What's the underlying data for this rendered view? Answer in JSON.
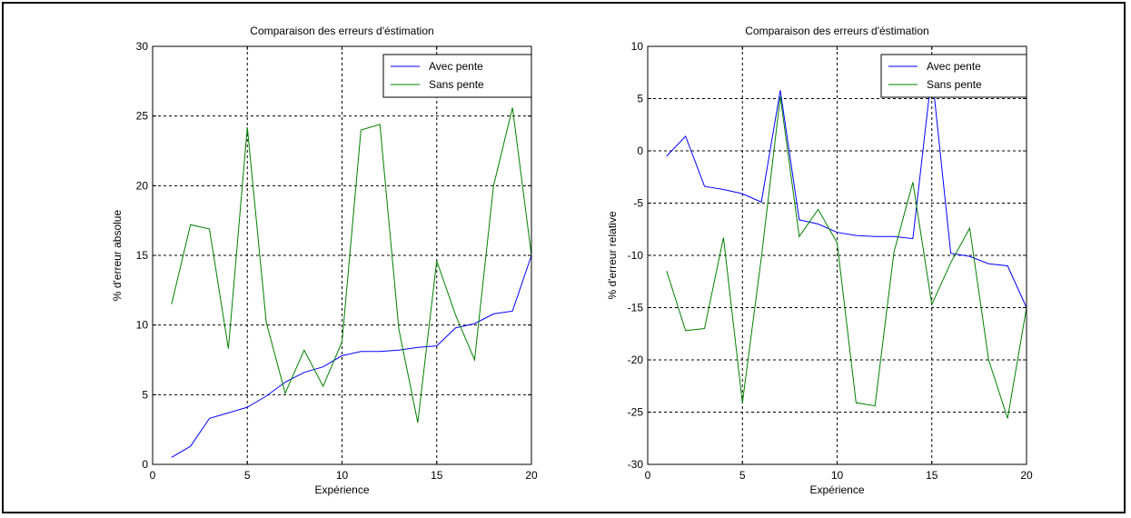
{
  "colors": {
    "series_blue": "#0000ff",
    "series_green": "#008000",
    "grid": "#000000",
    "background": "#ffffff"
  },
  "chart_data": [
    {
      "type": "line",
      "title": "Comparaison des erreurs d'éstimation",
      "xlabel": "Expérience",
      "ylabel": "% d'erreur absolue",
      "xlim": [
        0,
        20
      ],
      "ylim": [
        0,
        30
      ],
      "xticks": [
        0,
        5,
        10,
        15,
        20
      ],
      "yticks": [
        0,
        5,
        10,
        15,
        20,
        25,
        30
      ],
      "grid": true,
      "legend_position": "top-right",
      "x": [
        1,
        2,
        3,
        4,
        5,
        6,
        7,
        8,
        9,
        10,
        11,
        12,
        13,
        14,
        15,
        16,
        17,
        18,
        19,
        20
      ],
      "series": [
        {
          "name": "Avec pente",
          "color": "#0000ff",
          "values": [
            0.5,
            1.3,
            3.3,
            3.7,
            4.1,
            4.9,
            5.9,
            6.6,
            7.0,
            7.8,
            8.1,
            8.1,
            8.2,
            8.4,
            8.5,
            9.8,
            10.1,
            10.8,
            11.0,
            15.0
          ]
        },
        {
          "name": "Sans pente",
          "color": "#008000",
          "values": [
            11.5,
            17.2,
            16.9,
            8.3,
            24.2,
            10.2,
            5.1,
            8.2,
            5.6,
            8.8,
            24.0,
            24.4,
            9.7,
            3.0,
            14.6,
            10.7,
            7.5,
            20.0,
            25.6,
            15.0
          ]
        }
      ]
    },
    {
      "type": "line",
      "title": "Comparaison des erreurs d'éstimation",
      "xlabel": "Expérience",
      "ylabel": "% d'erreur relative",
      "xlim": [
        0,
        20
      ],
      "ylim": [
        -30,
        10
      ],
      "xticks": [
        0,
        5,
        10,
        15,
        20
      ],
      "yticks": [
        -30,
        -25,
        -20,
        -15,
        -10,
        -5,
        0,
        5,
        10
      ],
      "grid": true,
      "legend_position": "top-right",
      "x": [
        1,
        2,
        3,
        4,
        5,
        6,
        7,
        8,
        9,
        10,
        11,
        12,
        13,
        14,
        15,
        16,
        17,
        18,
        19,
        20
      ],
      "series": [
        {
          "name": "Avec pente",
          "color": "#0000ff",
          "values": [
            -0.5,
            1.4,
            -3.4,
            -3.7,
            -4.1,
            -4.9,
            5.8,
            -6.6,
            -7.0,
            -7.8,
            -8.1,
            -8.2,
            -8.2,
            -8.4,
            7.5,
            -9.8,
            -10.1,
            -10.8,
            -11.0,
            -15.0
          ]
        },
        {
          "name": "Sans pente",
          "color": "#008000",
          "values": [
            -11.5,
            -17.2,
            -17.0,
            -8.3,
            -24.1,
            -10.2,
            5.2,
            -8.2,
            -5.6,
            -8.8,
            -24.1,
            -24.4,
            -9.7,
            -3.0,
            -14.7,
            -10.7,
            -7.4,
            -20.0,
            -25.6,
            -15.0
          ]
        }
      ]
    }
  ]
}
